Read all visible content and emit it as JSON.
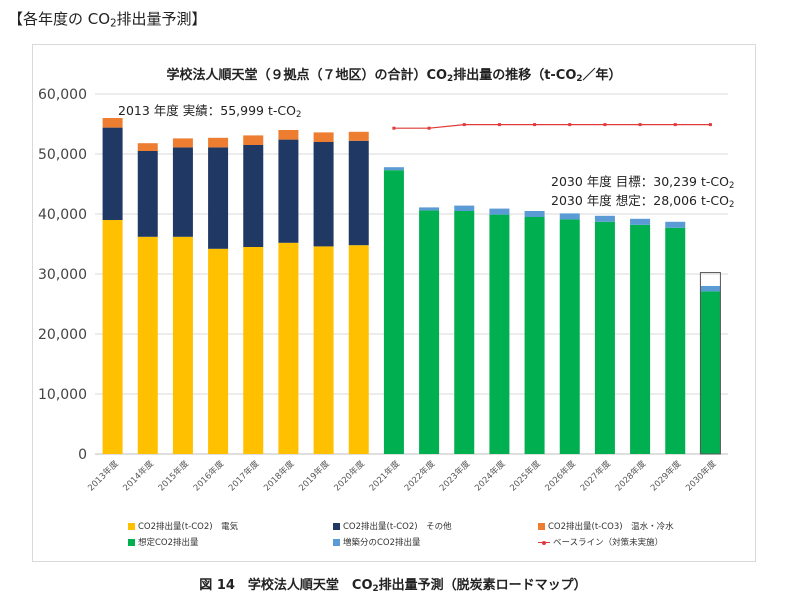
{
  "heading": {
    "prefix": "【各年度の CO",
    "sub": "2",
    "suffix": "排出量予測】"
  },
  "chart_data": {
    "type": "bar",
    "stacked": true,
    "title": {
      "prefix": "学校法人順天堂（９拠点（７地区）の合計）CO",
      "sub": "2",
      "suffix": "排出量の推移（t-CO",
      "sub2": "2",
      "suffix2": "／年）"
    },
    "categories": [
      "2013年度",
      "2014年度",
      "2015年度",
      "2016年度",
      "2017年度",
      "2018年度",
      "2019年度",
      "2020年度",
      "2021年度",
      "2022年度",
      "2023年度",
      "2024年度",
      "2025年度",
      "2026年度",
      "2027年度",
      "2028年度",
      "2029年度",
      "2030年度"
    ],
    "y_ticks": [
      "0",
      "10,000",
      "20,000",
      "30,000",
      "40,000",
      "50,000",
      "60,000"
    ],
    "ylim": [
      0,
      60000
    ],
    "series": [
      {
        "name": "CO2排出量(t-CO2)　電気",
        "color": "#FFC000",
        "values": [
          39000,
          36200,
          36200,
          34200,
          34500,
          35200,
          34600,
          34800,
          null,
          null,
          null,
          null,
          null,
          null,
          null,
          null,
          null,
          null
        ]
      },
      {
        "name": "CO2排出量(t-CO2)　その他",
        "color": "#203864",
        "values": [
          15400,
          14300,
          14900,
          16900,
          17000,
          17200,
          17400,
          17400,
          null,
          null,
          null,
          null,
          null,
          null,
          null,
          null,
          null,
          null
        ]
      },
      {
        "name": "CO2排出量(t-CO3)　温水・冷水",
        "color": "#ED7D31",
        "values": [
          1599,
          1300,
          1500,
          1600,
          1600,
          1600,
          1600,
          1500,
          null,
          null,
          null,
          null,
          null,
          null,
          null,
          null,
          null,
          null
        ]
      },
      {
        "name": "想定CO2排出量",
        "color": "#00B050",
        "values": [
          null,
          null,
          null,
          null,
          null,
          null,
          null,
          null,
          47300,
          40600,
          40500,
          39900,
          39500,
          39100,
          38700,
          38200,
          37700,
          27100
        ]
      },
      {
        "name": "増築分のCO2排出量",
        "color": "#5B9BD5",
        "values": [
          null,
          null,
          null,
          null,
          null,
          null,
          null,
          null,
          500,
          500,
          900,
          1000,
          1000,
          1000,
          1000,
          1000,
          1000,
          906
        ]
      },
      {
        "name": "ベースライン（対策未実施）",
        "color": "#E03A3A",
        "type": "line",
        "values": [
          null,
          null,
          null,
          null,
          null,
          null,
          null,
          null,
          54300,
          54300,
          54900,
          54900,
          54900,
          54900,
          54900,
          54900,
          54900,
          54900
        ]
      }
    ],
    "target_outline_2030": 30239,
    "annotations": {
      "actual_2013": {
        "prefix": "2013 年度  実績：55,999 t-CO",
        "sub": "2"
      },
      "target_2030": {
        "prefix": "2030 年度  目標：30,239 t-CO",
        "sub": "2"
      },
      "assumed_2030": {
        "prefix": "2030 年度  想定：28,006 t-CO",
        "sub": "2"
      }
    }
  },
  "legend": {
    "electricity": "CO2排出量(t-CO2)　電気",
    "other": "CO2排出量(t-CO2)　その他",
    "hot_cold_water": "CO2排出量(t-CO3)　温水・冷水",
    "assumed": "想定CO2排出量",
    "extension": "増築分のCO2排出量",
    "baseline": "ベースライン（対策未実施）"
  },
  "caption": {
    "prefix": "図 14　学校法人順天堂　CO",
    "sub": "2",
    "suffix": "排出量予測（脱炭素ロードマップ）"
  },
  "colors": {
    "electricity": "#FFC000",
    "other": "#203864",
    "hot_cold_water": "#ED7D31",
    "assumed": "#00B050",
    "extension": "#5B9BD5",
    "baseline": "#E03A3A",
    "grid": "#d9d9d9"
  }
}
